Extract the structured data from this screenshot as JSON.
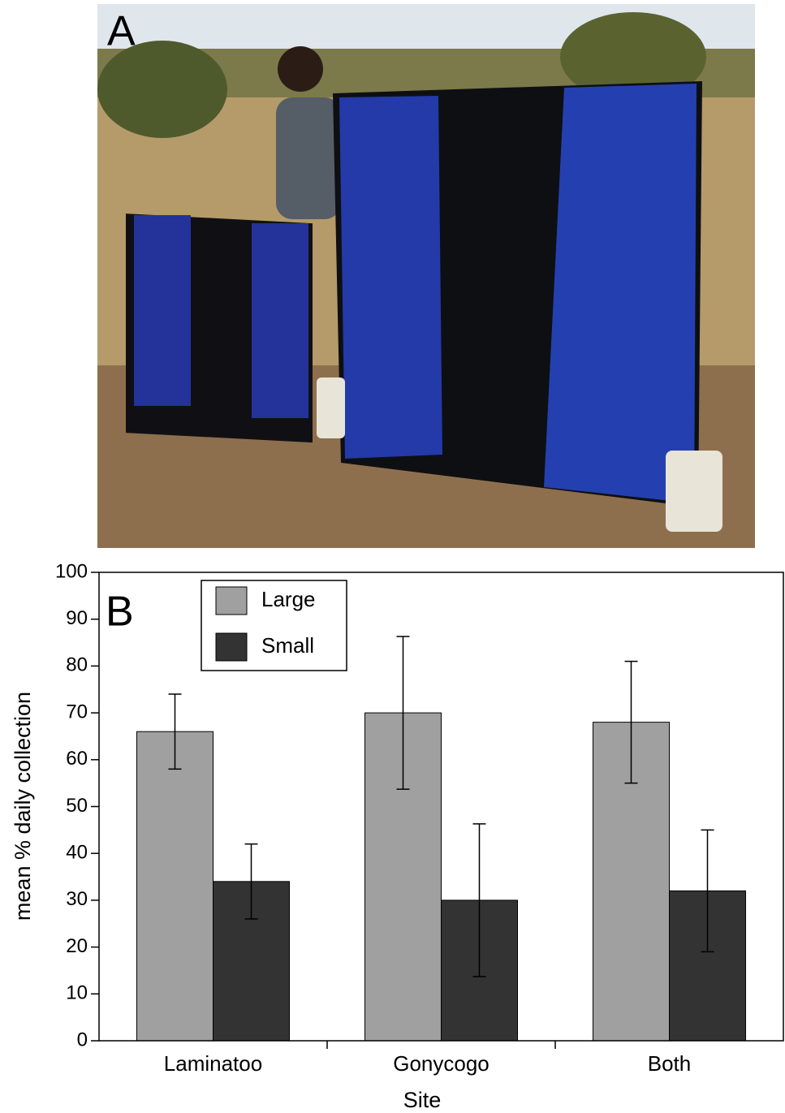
{
  "panel_a": {
    "label": "A"
  },
  "chart_data": {
    "type": "bar",
    "panel_label": "B",
    "x_label": "Site",
    "y_label": "mean % daily collection",
    "categories": [
      "Laminatoo",
      "Gonycogo",
      "Both"
    ],
    "series": [
      {
        "name": "Large",
        "color": "#a0a0a0",
        "values": [
          66,
          70,
          68
        ],
        "errors": [
          8,
          16.3,
          13
        ]
      },
      {
        "name": "Small",
        "color": "#333333",
        "values": [
          34,
          30,
          32
        ],
        "errors": [
          8,
          16.3,
          13
        ]
      }
    ],
    "ylim": [
      0,
      100
    ],
    "yticks": [
      0,
      10,
      20,
      30,
      40,
      50,
      60,
      70,
      80,
      90,
      100
    ],
    "legend": "upper left"
  }
}
